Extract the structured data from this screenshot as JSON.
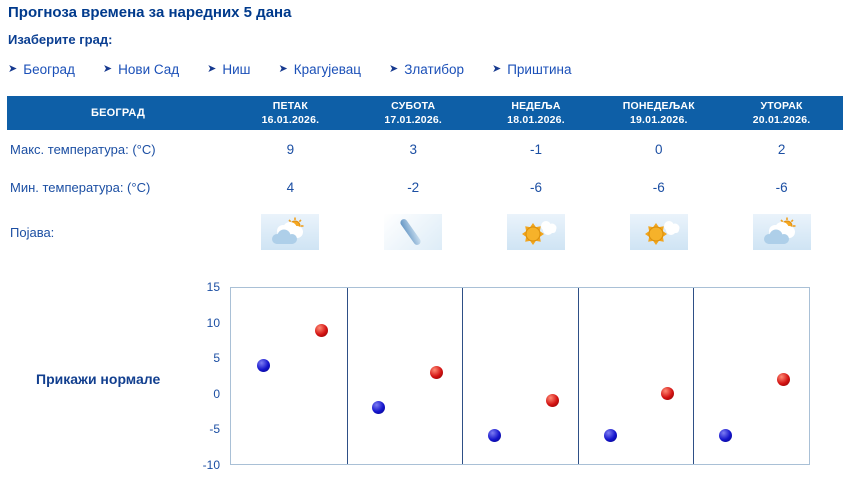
{
  "page": {
    "title": "Прогноза времена за наредних 5 дана",
    "choose_city_label": "Изаберите град:",
    "show_normals_label": "Прикажи нормале",
    "arrow_glyph": "➤"
  },
  "colors": {
    "header_bg": "#0e5fa7",
    "title_text": "#003a8c",
    "body_text": "#1c4fa3",
    "link_text": "#1b50b8",
    "max_dot": "#d31212",
    "min_dot": "#1414cc",
    "gridline": "#2e4f86",
    "icon_box_bg": "#cfe4f4"
  },
  "cities": [
    {
      "label": "Београд"
    },
    {
      "label": "Нови Сад"
    },
    {
      "label": "Ниш"
    },
    {
      "label": "Крагујевац"
    },
    {
      "label": "Златибор"
    },
    {
      "label": "Приштина"
    }
  ],
  "table": {
    "city_header": "БЕОГРАД",
    "days": [
      {
        "name": "ПЕТАК",
        "date": "16.01.2026."
      },
      {
        "name": "СУБОТА",
        "date": "17.01.2026."
      },
      {
        "name": "НЕДЕЉА",
        "date": "18.01.2026."
      },
      {
        "name": "ПОНЕДЕЉАК",
        "date": "19.01.2026."
      },
      {
        "name": "УТОРАК",
        "date": "20.01.2026."
      }
    ],
    "max_label": "Макс. температура: (°C)",
    "min_label": "Мин. температура: (°C)",
    "phenomenon_label": "Појава:",
    "max_values": [
      "9",
      "3",
      "-1",
      "0",
      "2"
    ],
    "min_values": [
      "4",
      "-2",
      "-6",
      "-6",
      "-6"
    ],
    "icons": [
      "partly-cloudy",
      "freezing-drizzle",
      "sun-with-cloud",
      "sun-with-cloud",
      "partly-cloudy"
    ]
  },
  "chart_data": {
    "type": "scatter",
    "categories": [
      "16.01.2026.",
      "17.01.2026.",
      "18.01.2026.",
      "19.01.2026.",
      "20.01.2026."
    ],
    "series": [
      {
        "name": "max",
        "color": "#d31212",
        "values": [
          9,
          3,
          -1,
          0,
          2
        ]
      },
      {
        "name": "min",
        "color": "#1414cc",
        "values": [
          4,
          -2,
          -6,
          -6,
          -6
        ]
      }
    ],
    "ylim": [
      -10,
      15
    ],
    "yticks": [
      15,
      10,
      5,
      0,
      -5,
      -10
    ],
    "grid": "vertical-day-separators",
    "legend": "none",
    "title": "",
    "xlabel": "",
    "ylabel": ""
  }
}
